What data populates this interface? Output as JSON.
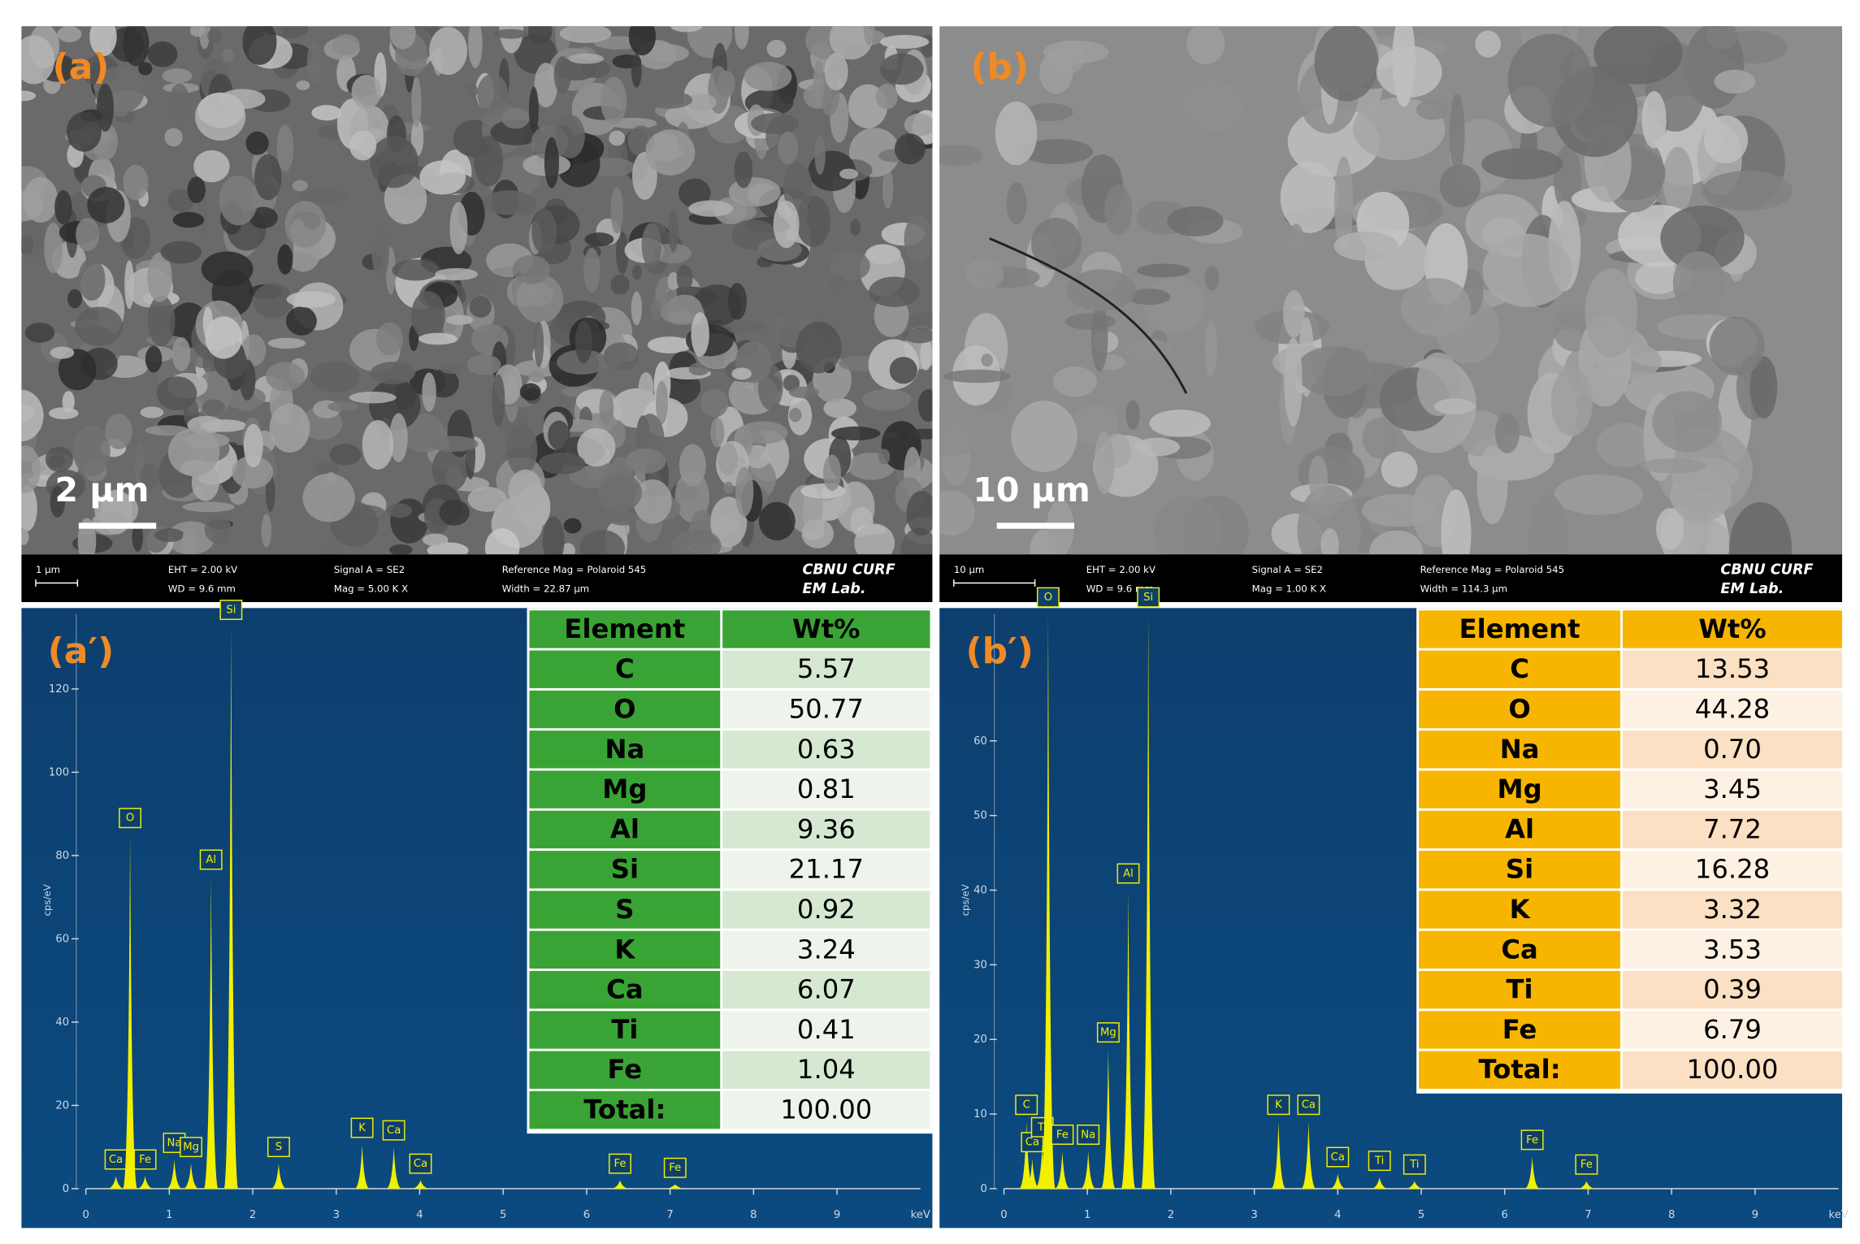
{
  "panels": [
    {
      "label": "(a)",
      "scale_bar": "2 µm",
      "info": [
        "1 µm",
        "EHT = 2.00 kV",
        "Signal A = SE2",
        "Reference Mag = Polaroid 545",
        "CBNU CURF",
        "WD = 9.6 mm",
        "Mag = 5.00 K X",
        "Width = 22.87 µm",
        "EM Lab."
      ]
    },
    {
      "label": "(b)",
      "scale_bar": "10 µm",
      "info": [
        "10 µm",
        "EHT = 2.00 kV",
        "Signal A = SE2",
        "Reference Mag = Polaroid 545",
        "CBNU CURF",
        "WD = 9.6 mm",
        "Mag = 1.00 K X",
        "Width = 114.3 µm",
        "EM Lab."
      ]
    }
  ],
  "chart_data": [
    {
      "type": "spectrum",
      "label": "(a′)",
      "ylabel": "cps/eV",
      "xlabel": "keV",
      "color": "#f0f000",
      "xlim": [
        0,
        10
      ],
      "xticks": [
        0,
        1,
        2,
        3,
        4,
        5,
        6,
        7,
        8,
        9
      ],
      "ylim": [
        0,
        138
      ],
      "yticks": [
        0,
        20,
        40,
        60,
        80,
        100,
        120
      ],
      "peak_labels": [
        "Ca",
        "Fe",
        "O",
        "Na",
        "Mg",
        "Al",
        "Si",
        "S",
        "K",
        "Ca",
        "Ca",
        "Fe",
        "Fe"
      ],
      "x": [
        0.36,
        0.71,
        0.53,
        1.06,
        1.26,
        1.5,
        1.74,
        2.31,
        3.31,
        3.69,
        4.01,
        6.4,
        7.06
      ],
      "values": [
        3,
        3,
        85,
        7,
        6,
        75,
        135,
        6,
        10.6,
        10,
        2,
        2,
        1
      ],
      "table": {
        "columns": [
          "Element",
          "Wt%"
        ],
        "rows": [
          [
            "C",
            "5.57"
          ],
          [
            "O",
            "50.77"
          ],
          [
            "Na",
            "0.63"
          ],
          [
            "Mg",
            "0.81"
          ],
          [
            "Al",
            "9.36"
          ],
          [
            "Si",
            "21.17"
          ],
          [
            "S",
            "0.92"
          ],
          [
            "K",
            "3.24"
          ],
          [
            "Ca",
            "6.07"
          ],
          [
            "Ti",
            "0.41"
          ],
          [
            "Fe",
            "1.04"
          ],
          [
            "Total:",
            "100.00"
          ]
        ]
      }
    },
    {
      "type": "spectrum",
      "label": "(b′)",
      "ylabel": "cps/eV",
      "xlabel": "keV",
      "color": "#f0f000",
      "xlim": [
        0,
        10
      ],
      "xticks": [
        0,
        1,
        2,
        3,
        4,
        5,
        6,
        7,
        8,
        9
      ],
      "ylim": [
        0,
        77
      ],
      "yticks": [
        0,
        10,
        20,
        30,
        40,
        50,
        60
      ],
      "peak_labels": [
        "C",
        "Ca",
        "Ti",
        "O",
        "Fe",
        "Na",
        "Mg",
        "Al",
        "Si",
        "K",
        "Ca",
        "Ca",
        "Ti",
        "Ti",
        "Fe",
        "Fe"
      ],
      "x": [
        0.27,
        0.34,
        0.46,
        0.53,
        0.7,
        1.01,
        1.25,
        1.49,
        1.73,
        3.29,
        3.65,
        4.0,
        4.5,
        4.92,
        6.33,
        6.98
      ],
      "values": [
        9,
        4,
        6,
        77,
        5,
        5,
        18.7,
        40,
        77,
        9,
        9,
        2,
        1.5,
        1,
        4.3,
        1
      ],
      "table": {
        "columns": [
          "Element",
          "Wt%"
        ],
        "rows": [
          [
            "C",
            "13.53"
          ],
          [
            "O",
            "44.28"
          ],
          [
            "Na",
            "0.70"
          ],
          [
            "Mg",
            "3.45"
          ],
          [
            "Al",
            "7.72"
          ],
          [
            "Si",
            "16.28"
          ],
          [
            "K",
            "3.32"
          ],
          [
            "Ca",
            "3.53"
          ],
          [
            "Ti",
            "0.39"
          ],
          [
            "Fe",
            "6.79"
          ],
          [
            "Total:",
            "100.00"
          ]
        ]
      }
    }
  ]
}
